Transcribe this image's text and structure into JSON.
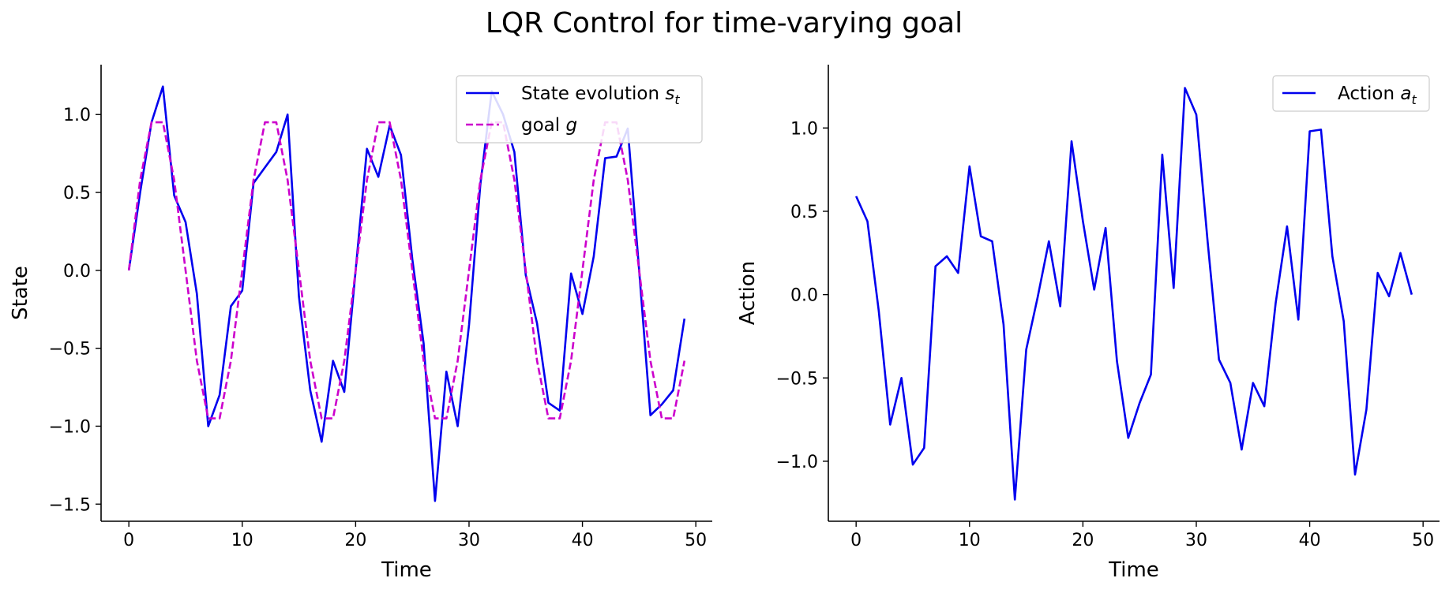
{
  "figure": {
    "title": "LQR Control for time-varying goal"
  },
  "chart_data": [
    {
      "type": "line",
      "title": "",
      "xlabel": "Time",
      "ylabel": "State",
      "xlim": [
        -2.45,
        51.45
      ],
      "ylim": [
        -1.61,
        1.32
      ],
      "xticks": [
        0,
        10,
        20,
        30,
        40,
        50
      ],
      "xtick_labels": [
        "0",
        "10",
        "20",
        "30",
        "40",
        "50"
      ],
      "yticks": [
        -1.5,
        -1.0,
        -0.5,
        0.0,
        0.5,
        1.0
      ],
      "ytick_labels": [
        "−1.5",
        "−1.0",
        "−0.5",
        "0.0",
        "0.5",
        "1.0"
      ],
      "grid": false,
      "legend_position": "top-right",
      "x": [
        0,
        1,
        2,
        3,
        4,
        5,
        6,
        7,
        8,
        9,
        10,
        11,
        12,
        13,
        14,
        15,
        16,
        17,
        18,
        19,
        20,
        21,
        22,
        23,
        24,
        25,
        26,
        27,
        28,
        29,
        30,
        31,
        32,
        33,
        34,
        35,
        36,
        37,
        38,
        39,
        40,
        41,
        42,
        43,
        44,
        45,
        46,
        47,
        48,
        49
      ],
      "series": [
        {
          "name": "State evolution s",
          "name_sub": "t",
          "style": "solid",
          "color": "#0000ee",
          "values": [
            0.0,
            0.5,
            0.95,
            1.18,
            0.48,
            0.31,
            -0.15,
            -1.0,
            -0.8,
            -0.23,
            -0.13,
            0.56,
            0.66,
            0.76,
            1.0,
            -0.17,
            -0.77,
            -1.1,
            -0.58,
            -0.78,
            0.0,
            0.78,
            0.6,
            0.93,
            0.74,
            0.07,
            -0.47,
            -1.48,
            -0.65,
            -1.0,
            -0.35,
            0.55,
            1.15,
            1.0,
            0.76,
            -0.03,
            -0.34,
            -0.85,
            -0.9,
            -0.02,
            -0.28,
            0.09,
            0.72,
            0.73,
            0.91,
            0.0,
            -0.93,
            -0.86,
            -0.77,
            -0.31
          ]
        },
        {
          "name": "goal g",
          "style": "dashed",
          "color": "#cc00cc",
          "values": [
            0.0,
            0.58,
            0.95,
            0.95,
            0.58,
            0.0,
            -0.58,
            -0.95,
            -0.95,
            -0.58,
            0.0,
            0.58,
            0.95,
            0.95,
            0.58,
            0.0,
            -0.58,
            -0.95,
            -0.95,
            -0.58,
            0.0,
            0.58,
            0.95,
            0.95,
            0.58,
            0.0,
            -0.58,
            -0.95,
            -0.95,
            -0.58,
            0.0,
            0.58,
            0.95,
            0.95,
            0.58,
            0.0,
            -0.58,
            -0.95,
            -0.95,
            -0.58,
            0.0,
            0.58,
            0.95,
            0.95,
            0.58,
            0.0,
            -0.58,
            -0.95,
            -0.95,
            -0.58
          ]
        }
      ]
    },
    {
      "type": "line",
      "title": "",
      "xlabel": "Time",
      "ylabel": "Action",
      "xlim": [
        -2.45,
        51.45
      ],
      "ylim": [
        -1.36,
        1.38
      ],
      "xticks": [
        0,
        10,
        20,
        30,
        40,
        50
      ],
      "xtick_labels": [
        "0",
        "10",
        "20",
        "30",
        "40",
        "50"
      ],
      "yticks": [
        -1.0,
        -0.5,
        0.0,
        0.5,
        1.0
      ],
      "ytick_labels": [
        "−1.0",
        "−0.5",
        "0.0",
        "0.5",
        "1.0"
      ],
      "grid": false,
      "legend_position": "top-right",
      "x": [
        0,
        1,
        2,
        3,
        4,
        5,
        6,
        7,
        8,
        9,
        10,
        11,
        12,
        13,
        14,
        15,
        16,
        17,
        18,
        19,
        20,
        21,
        22,
        23,
        24,
        25,
        26,
        27,
        28,
        29,
        30,
        31,
        32,
        33,
        34,
        35,
        36,
        37,
        38,
        39,
        40,
        41,
        42,
        43,
        44,
        45,
        46,
        47,
        48,
        49
      ],
      "series": [
        {
          "name": "Action a",
          "name_sub": "t",
          "style": "solid",
          "color": "#0000ee",
          "values": [
            0.59,
            0.44,
            -0.1,
            -0.78,
            -0.5,
            -1.02,
            -0.92,
            0.17,
            0.23,
            0.13,
            0.77,
            0.35,
            0.32,
            -0.18,
            -1.23,
            -0.33,
            -0.02,
            0.32,
            -0.07,
            0.92,
            0.44,
            0.03,
            0.4,
            -0.4,
            -0.86,
            -0.65,
            -0.48,
            0.84,
            0.04,
            1.24,
            1.08,
            0.32,
            -0.39,
            -0.53,
            -0.93,
            -0.53,
            -0.67,
            -0.05,
            0.41,
            -0.15,
            0.98,
            0.99,
            0.23,
            -0.16,
            -1.08,
            -0.69,
            0.13,
            -0.01,
            0.25,
            0.0
          ]
        }
      ]
    }
  ]
}
